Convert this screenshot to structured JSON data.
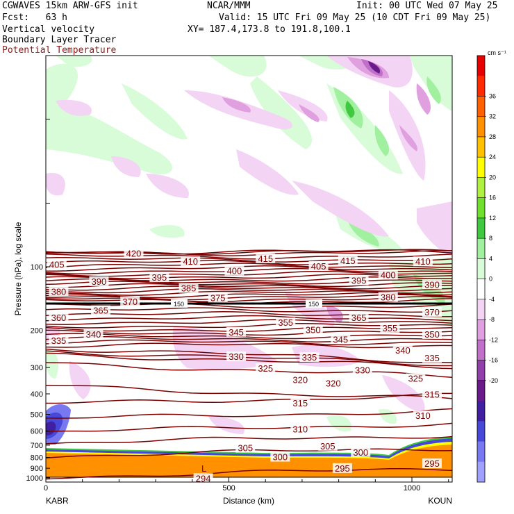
{
  "header": {
    "line1_left": "CGWAVES 15km ARW-GFS init",
    "line1_mid": "NCAR/MMM",
    "line1_right": "Init: 00 UTC Wed 07 May 25",
    "line2_left": "Fcst:   63 h",
    "line2_right": "Valid: 15 UTC Fri 09 May 25 (10 CDT Fri 09 May 25)",
    "line3_left": "Vertical velocity",
    "line3_right": "XY= 187.4,173.8 to 191.8,100.1",
    "line4_left": "Boundary Layer Tracer",
    "line5_left": "Potential Temperature"
  },
  "chart_data": {
    "type": "heatmap",
    "title": "Vertical velocity / Boundary Layer Tracer / Potential Temperature cross section",
    "xlabel": "Distance (km)",
    "ylabel": "Pressure (hPa), log scale",
    "x_ticks": [
      0,
      500,
      1000
    ],
    "x_tick_labels": [
      "0",
      "500",
      "1000"
    ],
    "xlim": [
      0,
      1110
    ],
    "y_ticks": [
      100,
      200,
      300,
      400,
      500,
      600,
      700,
      800,
      900,
      1000
    ],
    "y_tick_labels": [
      "100",
      "200",
      "300",
      "400",
      "500",
      "600",
      "700",
      "800",
      "900",
      "1000"
    ],
    "endpoints": {
      "left": "KABR",
      "right": "KOUN"
    },
    "colorbar": {
      "unit": "cm s⁻¹",
      "labels": [
        "36",
        "32",
        "28",
        "24",
        "20",
        "16",
        "12",
        "8",
        "4",
        "0",
        "-4",
        "-8",
        "-12",
        "-16",
        "-20"
      ],
      "colors": [
        "#e60000",
        "#ff2a00",
        "#ff6000",
        "#ff9000",
        "#ffc000",
        "#ffff00",
        "#b0f040",
        "#70e030",
        "#40c840",
        "#a0f0a0",
        "#d8fcd8",
        "#ffffff",
        "#f4d4f4",
        "#e0a0e0",
        "#c070c8",
        "#9040a8",
        "#6a1a8a",
        "#4020a0",
        "#4848d8",
        "#7878f0",
        "#a0a0ff"
      ]
    },
    "theta_labels": [
      {
        "v": "420",
        "x": 240,
        "p": 87
      },
      {
        "v": "405",
        "x": 30,
        "p": 98
      },
      {
        "v": "410",
        "x": 395,
        "p": 95
      },
      {
        "v": "415",
        "x": 600,
        "p": 92
      },
      {
        "v": "405",
        "x": 745,
        "p": 100
      },
      {
        "v": "415",
        "x": 825,
        "p": 94
      },
      {
        "v": "410",
        "x": 1030,
        "p": 95
      },
      {
        "v": "390",
        "x": 145,
        "p": 118
      },
      {
        "v": "395",
        "x": 310,
        "p": 113
      },
      {
        "v": "400",
        "x": 515,
        "p": 105
      },
      {
        "v": "395",
        "x": 855,
        "p": 117
      },
      {
        "v": "400",
        "x": 935,
        "p": 110
      },
      {
        "v": "390",
        "x": 1055,
        "p": 122
      },
      {
        "v": "380",
        "x": 35,
        "p": 132
      },
      {
        "v": "385",
        "x": 390,
        "p": 127
      },
      {
        "v": "380",
        "x": 935,
        "p": 140
      },
      {
        "v": "370",
        "x": 230,
        "p": 147
      },
      {
        "v": "375",
        "x": 470,
        "p": 141
      },
      {
        "v": "365",
        "x": 150,
        "p": 162
      },
      {
        "v": "360",
        "x": 35,
        "p": 175
      },
      {
        "v": "370",
        "x": 1055,
        "p": 165
      },
      {
        "v": "365",
        "x": 855,
        "p": 175
      },
      {
        "v": "355",
        "x": 655,
        "p": 185
      },
      {
        "v": "355",
        "x": 940,
        "p": 196
      },
      {
        "v": "340",
        "x": 130,
        "p": 210
      },
      {
        "v": "345",
        "x": 520,
        "p": 205
      },
      {
        "v": "350",
        "x": 730,
        "p": 200
      },
      {
        "v": "350",
        "x": 1055,
        "p": 210
      },
      {
        "v": "335",
        "x": 35,
        "p": 225
      },
      {
        "v": "345",
        "x": 805,
        "p": 222
      },
      {
        "v": "340",
        "x": 975,
        "p": 250
      },
      {
        "v": "330",
        "x": 520,
        "p": 268
      },
      {
        "v": "335",
        "x": 720,
        "p": 270
      },
      {
        "v": "335",
        "x": 1055,
        "p": 272
      },
      {
        "v": "325",
        "x": 600,
        "p": 305
      },
      {
        "v": "330",
        "x": 865,
        "p": 310
      },
      {
        "v": "325",
        "x": 1010,
        "p": 340
      },
      {
        "v": "320",
        "x": 695,
        "p": 345
      },
      {
        "v": "320",
        "x": 785,
        "p": 358
      },
      {
        "v": "315",
        "x": 695,
        "p": 445
      },
      {
        "v": "315",
        "x": 1055,
        "p": 405
      },
      {
        "v": "310",
        "x": 695,
        "p": 590
      },
      {
        "v": "310",
        "x": 1030,
        "p": 510
      },
      {
        "v": "305",
        "x": 545,
        "p": 725
      },
      {
        "v": "305",
        "x": 770,
        "p": 710
      },
      {
        "v": "300",
        "x": 640,
        "p": 800
      },
      {
        "v": "300",
        "x": 860,
        "p": 760
      },
      {
        "v": "295",
        "x": 810,
        "p": 905
      },
      {
        "v": "295",
        "x": 1055,
        "p": 860
      },
      {
        "v": "294",
        "x": 430,
        "p": 1010
      }
    ],
    "tropopause_label": "150",
    "low_marker": "L"
  }
}
